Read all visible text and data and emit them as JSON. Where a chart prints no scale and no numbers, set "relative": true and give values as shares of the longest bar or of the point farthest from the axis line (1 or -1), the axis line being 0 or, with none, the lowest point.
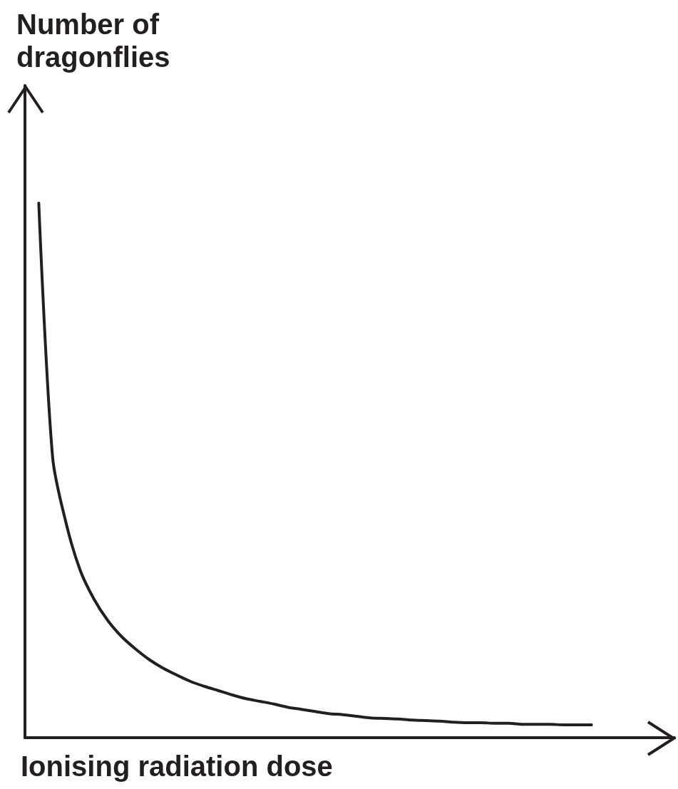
{
  "chart_data": {
    "type": "line",
    "relative": true,
    "xlabel": "Ionising radiation dose",
    "ylabel": "Number of dragonflies",
    "categories": [
      null,
      null,
      null,
      null,
      null,
      null,
      null,
      null,
      null,
      null,
      null,
      null,
      null,
      null,
      null,
      null,
      null,
      null,
      null,
      null,
      null,
      null,
      null,
      null,
      null,
      null,
      null,
      null,
      null,
      null,
      null,
      null,
      null,
      null,
      null,
      null,
      null,
      null,
      null,
      null,
      null
    ],
    "series": [
      {
        "color": "#231f20",
        "values": [
          1,
          0.525,
          0.399,
          0.313,
          0.259,
          0.219,
          0.189,
          0.166,
          0.146,
          0.13,
          0.117,
          0.105,
          0.096,
          0.088,
          0.08,
          0.073,
          0.068,
          0.063,
          0.057,
          0.053,
          0.049,
          0.045,
          0.043,
          0.04,
          0.037,
          0.036,
          0.035,
          0.033,
          0.032,
          0.031,
          0.029,
          0.028,
          0.028,
          0.027,
          0.027,
          0.025,
          0.025,
          0.025,
          0.024,
          0.024,
          0.024
        ]
      }
    ],
    "grid": false,
    "marker": "none",
    "line_style": "solid"
  }
}
